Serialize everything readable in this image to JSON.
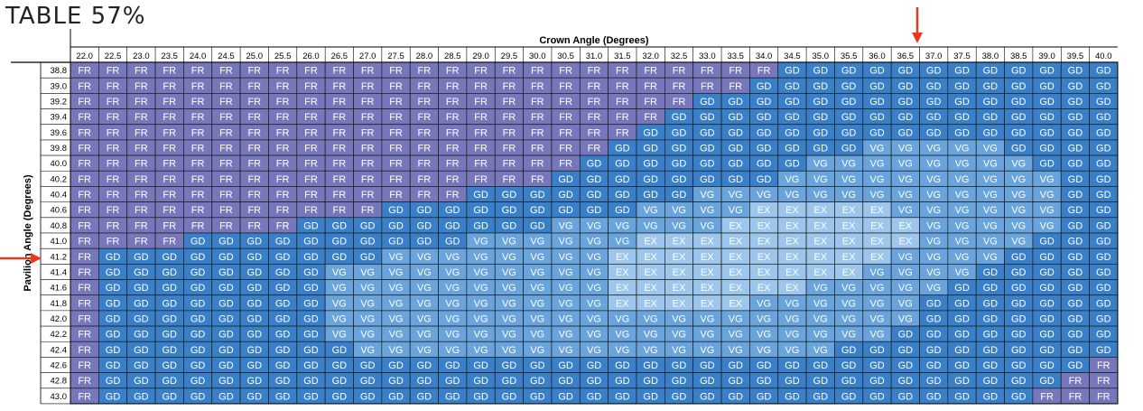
{
  "title": "TABLE 57%",
  "chart_data": {
    "type": "table",
    "xlabel": "Crown Angle (Degrees)",
    "ylabel": "Pavilion Angle (Degrees)",
    "crown_angles": [
      "22.0",
      "22.5",
      "23.0",
      "23.5",
      "24.0",
      "24.5",
      "25.0",
      "25.5",
      "26.0",
      "26.5",
      "27.0",
      "27.5",
      "28.0",
      "28.5",
      "29.0",
      "29.5",
      "30.0",
      "30.5",
      "31.0",
      "31.5",
      "32.0",
      "32.5",
      "33.0",
      "33.5",
      "34.0",
      "34.5",
      "35.0",
      "35.5",
      "36.0",
      "36.5",
      "37.0",
      "37.5",
      "38.0",
      "38.5",
      "39.0",
      "39.5",
      "40.0"
    ],
    "pavilion_angles": [
      "38.8",
      "39.0",
      "39.2",
      "39.4",
      "39.6",
      "39.8",
      "40.0",
      "40.2",
      "40.4",
      "40.6",
      "40.8",
      "41.0",
      "41.2",
      "41.4",
      "41.6",
      "41.8",
      "42.0",
      "42.2",
      "42.4",
      "42.6",
      "42.8",
      "43.0"
    ],
    "grades": [
      [
        "FR",
        "FR",
        "FR",
        "FR",
        "FR",
        "FR",
        "FR",
        "FR",
        "FR",
        "FR",
        "FR",
        "FR",
        "FR",
        "FR",
        "FR",
        "FR",
        "FR",
        "FR",
        "FR",
        "FR",
        "FR",
        "FR",
        "FR",
        "FR",
        "FR",
        "GD",
        "GD",
        "GD",
        "GD",
        "GD",
        "GD",
        "GD",
        "GD",
        "GD",
        "GD",
        "GD",
        "GD"
      ],
      [
        "FR",
        "FR",
        "FR",
        "FR",
        "FR",
        "FR",
        "FR",
        "FR",
        "FR",
        "FR",
        "FR",
        "FR",
        "FR",
        "FR",
        "FR",
        "FR",
        "FR",
        "FR",
        "FR",
        "FR",
        "FR",
        "FR",
        "FR",
        "FR",
        "GD",
        "GD",
        "GD",
        "GD",
        "GD",
        "GD",
        "GD",
        "GD",
        "GD",
        "GD",
        "GD",
        "GD",
        "GD"
      ],
      [
        "FR",
        "FR",
        "FR",
        "FR",
        "FR",
        "FR",
        "FR",
        "FR",
        "FR",
        "FR",
        "FR",
        "FR",
        "FR",
        "FR",
        "FR",
        "FR",
        "FR",
        "FR",
        "FR",
        "FR",
        "FR",
        "FR",
        "GD",
        "GD",
        "GD",
        "GD",
        "GD",
        "GD",
        "GD",
        "GD",
        "GD",
        "GD",
        "GD",
        "GD",
        "GD",
        "GD",
        "GD"
      ],
      [
        "FR",
        "FR",
        "FR",
        "FR",
        "FR",
        "FR",
        "FR",
        "FR",
        "FR",
        "FR",
        "FR",
        "FR",
        "FR",
        "FR",
        "FR",
        "FR",
        "FR",
        "FR",
        "FR",
        "FR",
        "FR",
        "GD",
        "GD",
        "GD",
        "GD",
        "GD",
        "GD",
        "GD",
        "GD",
        "GD",
        "GD",
        "GD",
        "GD",
        "GD",
        "GD",
        "GD",
        "GD"
      ],
      [
        "FR",
        "FR",
        "FR",
        "FR",
        "FR",
        "FR",
        "FR",
        "FR",
        "FR",
        "FR",
        "FR",
        "FR",
        "FR",
        "FR",
        "FR",
        "FR",
        "FR",
        "FR",
        "FR",
        "FR",
        "GD",
        "GD",
        "GD",
        "GD",
        "GD",
        "GD",
        "GD",
        "GD",
        "GD",
        "GD",
        "GD",
        "GD",
        "GD",
        "GD",
        "GD",
        "GD",
        "GD"
      ],
      [
        "FR",
        "FR",
        "FR",
        "FR",
        "FR",
        "FR",
        "FR",
        "FR",
        "FR",
        "FR",
        "FR",
        "FR",
        "FR",
        "FR",
        "FR",
        "FR",
        "FR",
        "FR",
        "FR",
        "GD",
        "GD",
        "GD",
        "GD",
        "GD",
        "GD",
        "GD",
        "GD",
        "GD",
        "VG",
        "VG",
        "VG",
        "VG",
        "VG",
        "GD",
        "GD",
        "GD",
        "GD"
      ],
      [
        "FR",
        "FR",
        "FR",
        "FR",
        "FR",
        "FR",
        "FR",
        "FR",
        "FR",
        "FR",
        "FR",
        "FR",
        "FR",
        "FR",
        "FR",
        "FR",
        "FR",
        "FR",
        "GD",
        "GD",
        "GD",
        "GD",
        "GD",
        "GD",
        "GD",
        "GD",
        "VG",
        "VG",
        "VG",
        "VG",
        "VG",
        "VG",
        "VG",
        "VG",
        "GD",
        "GD",
        "GD"
      ],
      [
        "FR",
        "FR",
        "FR",
        "FR",
        "FR",
        "FR",
        "FR",
        "FR",
        "FR",
        "FR",
        "FR",
        "FR",
        "FR",
        "FR",
        "FR",
        "FR",
        "FR",
        "GD",
        "GD",
        "GD",
        "GD",
        "GD",
        "GD",
        "GD",
        "GD",
        "VG",
        "VG",
        "VG",
        "VG",
        "VG",
        "VG",
        "VG",
        "VG",
        "VG",
        "VG",
        "GD",
        "GD"
      ],
      [
        "FR",
        "FR",
        "FR",
        "FR",
        "FR",
        "FR",
        "FR",
        "FR",
        "FR",
        "FR",
        "FR",
        "FR",
        "FR",
        "FR",
        "GD",
        "GD",
        "GD",
        "GD",
        "GD",
        "GD",
        "GD",
        "GD",
        "VG",
        "VG",
        "VG",
        "VG",
        "VG",
        "VG",
        "VG",
        "VG",
        "VG",
        "VG",
        "VG",
        "VG",
        "VG",
        "GD",
        "GD"
      ],
      [
        "FR",
        "FR",
        "FR",
        "FR",
        "FR",
        "FR",
        "FR",
        "FR",
        "FR",
        "FR",
        "FR",
        "GD",
        "GD",
        "GD",
        "GD",
        "GD",
        "GD",
        "GD",
        "GD",
        "GD",
        "VG",
        "VG",
        "VG",
        "VG",
        "EX",
        "EX",
        "EX",
        "EX",
        "EX",
        "VG",
        "VG",
        "VG",
        "VG",
        "VG",
        "VG",
        "GD",
        "GD"
      ],
      [
        "FR",
        "FR",
        "FR",
        "FR",
        "FR",
        "FR",
        "FR",
        "FR",
        "GD",
        "GD",
        "GD",
        "GD",
        "GD",
        "GD",
        "GD",
        "GD",
        "GD",
        "VG",
        "VG",
        "VG",
        "VG",
        "VG",
        "VG",
        "EX",
        "EX",
        "EX",
        "EX",
        "EX",
        "EX",
        "EX",
        "VG",
        "VG",
        "VG",
        "VG",
        "VG",
        "GD",
        "GD"
      ],
      [
        "FR",
        "FR",
        "FR",
        "FR",
        "GD",
        "GD",
        "GD",
        "GD",
        "GD",
        "GD",
        "GD",
        "GD",
        "GD",
        "GD",
        "VG",
        "VG",
        "VG",
        "VG",
        "VG",
        "VG",
        "EX",
        "EX",
        "EX",
        "EX",
        "EX",
        "EX",
        "EX",
        "EX",
        "EX",
        "EX",
        "VG",
        "VG",
        "VG",
        "VG",
        "GD",
        "GD",
        "GD"
      ],
      [
        "FR",
        "GD",
        "GD",
        "GD",
        "GD",
        "GD",
        "GD",
        "GD",
        "GD",
        "GD",
        "GD",
        "VG",
        "VG",
        "VG",
        "VG",
        "VG",
        "VG",
        "VG",
        "VG",
        "EX",
        "EX",
        "EX",
        "EX",
        "EX",
        "EX",
        "EX",
        "EX",
        "EX",
        "EX",
        "VG",
        "VG",
        "VG",
        "VG",
        "GD",
        "GD",
        "GD",
        "GD"
      ],
      [
        "FR",
        "GD",
        "GD",
        "GD",
        "GD",
        "GD",
        "GD",
        "GD",
        "GD",
        "VG",
        "VG",
        "VG",
        "VG",
        "VG",
        "VG",
        "VG",
        "VG",
        "VG",
        "VG",
        "EX",
        "EX",
        "EX",
        "EX",
        "EX",
        "EX",
        "EX",
        "EX",
        "EX",
        "VG",
        "VG",
        "VG",
        "VG",
        "GD",
        "GD",
        "GD",
        "GD",
        "GD"
      ],
      [
        "FR",
        "GD",
        "GD",
        "GD",
        "GD",
        "GD",
        "GD",
        "GD",
        "GD",
        "VG",
        "VG",
        "VG",
        "VG",
        "VG",
        "VG",
        "VG",
        "VG",
        "VG",
        "VG",
        "EX",
        "EX",
        "EX",
        "EX",
        "EX",
        "EX",
        "EX",
        "VG",
        "VG",
        "VG",
        "VG",
        "VG",
        "GD",
        "GD",
        "GD",
        "GD",
        "GD",
        "GD"
      ],
      [
        "FR",
        "GD",
        "GD",
        "GD",
        "GD",
        "GD",
        "GD",
        "GD",
        "GD",
        "VG",
        "VG",
        "VG",
        "VG",
        "VG",
        "VG",
        "VG",
        "VG",
        "VG",
        "VG",
        "EX",
        "EX",
        "EX",
        "EX",
        "EX",
        "VG",
        "VG",
        "VG",
        "VG",
        "VG",
        "VG",
        "GD",
        "GD",
        "GD",
        "GD",
        "GD",
        "GD",
        "GD"
      ],
      [
        "FR",
        "GD",
        "GD",
        "GD",
        "GD",
        "GD",
        "GD",
        "GD",
        "GD",
        "VG",
        "VG",
        "VG",
        "VG",
        "VG",
        "VG",
        "VG",
        "VG",
        "VG",
        "VG",
        "VG",
        "VG",
        "VG",
        "VG",
        "VG",
        "VG",
        "VG",
        "VG",
        "VG",
        "VG",
        "VG",
        "GD",
        "GD",
        "GD",
        "GD",
        "GD",
        "GD",
        "GD"
      ],
      [
        "FR",
        "GD",
        "GD",
        "GD",
        "GD",
        "GD",
        "GD",
        "GD",
        "GD",
        "VG",
        "VG",
        "VG",
        "VG",
        "VG",
        "VG",
        "VG",
        "VG",
        "VG",
        "VG",
        "VG",
        "VG",
        "VG",
        "VG",
        "VG",
        "VG",
        "VG",
        "VG",
        "VG",
        "VG",
        "GD",
        "GD",
        "GD",
        "GD",
        "GD",
        "GD",
        "GD",
        "GD"
      ],
      [
        "FR",
        "GD",
        "GD",
        "GD",
        "GD",
        "GD",
        "GD",
        "GD",
        "GD",
        "GD",
        "VG",
        "VG",
        "VG",
        "VG",
        "VG",
        "VG",
        "VG",
        "VG",
        "VG",
        "VG",
        "VG",
        "VG",
        "VG",
        "VG",
        "VG",
        "VG",
        "VG",
        "GD",
        "GD",
        "GD",
        "GD",
        "GD",
        "GD",
        "GD",
        "GD",
        "GD",
        "GD"
      ],
      [
        "FR",
        "GD",
        "GD",
        "GD",
        "GD",
        "GD",
        "GD",
        "GD",
        "GD",
        "GD",
        "GD",
        "GD",
        "GD",
        "GD",
        "GD",
        "GD",
        "GD",
        "GD",
        "GD",
        "GD",
        "GD",
        "GD",
        "GD",
        "GD",
        "GD",
        "GD",
        "GD",
        "GD",
        "GD",
        "GD",
        "GD",
        "GD",
        "GD",
        "GD",
        "GD",
        "GD",
        "FR"
      ],
      [
        "FR",
        "GD",
        "GD",
        "GD",
        "GD",
        "GD",
        "GD",
        "GD",
        "GD",
        "GD",
        "GD",
        "GD",
        "GD",
        "GD",
        "GD",
        "GD",
        "GD",
        "GD",
        "GD",
        "GD",
        "GD",
        "GD",
        "GD",
        "GD",
        "GD",
        "GD",
        "GD",
        "GD",
        "GD",
        "GD",
        "GD",
        "GD",
        "GD",
        "GD",
        "GD",
        "FR",
        "FR"
      ],
      [
        "FR",
        "GD",
        "GD",
        "GD",
        "GD",
        "GD",
        "GD",
        "GD",
        "GD",
        "GD",
        "GD",
        "GD",
        "GD",
        "GD",
        "GD",
        "GD",
        "GD",
        "GD",
        "GD",
        "GD",
        "GD",
        "GD",
        "GD",
        "GD",
        "GD",
        "GD",
        "GD",
        "GD",
        "GD",
        "GD",
        "GD",
        "GD",
        "GD",
        "GD",
        "FR",
        "FR",
        "FR"
      ]
    ],
    "grade_colors": {
      "FR": "#7777bb",
      "GD": "#3a80c8",
      "VG": "#6aa4dc",
      "EX": "#9cc6ec"
    },
    "marked_crown_angle": "36.5",
    "marked_pavilion_angle": "41.2",
    "marker_color": "#e63a1a"
  }
}
